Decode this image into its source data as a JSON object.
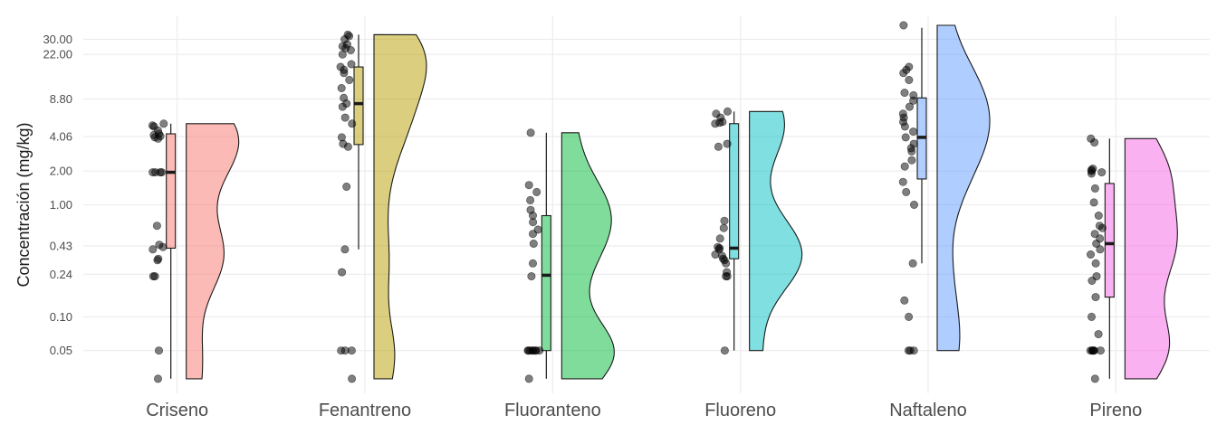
{
  "chart_data": {
    "type": "raincloud",
    "title": "",
    "xlabel": "",
    "ylabel": "Concentración (mg/kg)",
    "y_scale": "log",
    "ylim": [
      0.025,
      40
    ],
    "y_ticks": [
      0.05,
      0.1,
      0.24,
      0.43,
      1.0,
      2.0,
      4.06,
      8.8,
      22.0,
      30.0
    ],
    "y_tick_labels": [
      "0.05",
      "0.10",
      "0.24",
      "0.43",
      "1.00",
      "2.00",
      "4.06",
      "8.80",
      "22.00",
      "30.00"
    ],
    "grid": true,
    "legend": "none",
    "categories": [
      "Criseno",
      "Fenantreno",
      "Fluoranteno",
      "Fluoreno",
      "Naftaleno",
      "Pireno"
    ],
    "series": [
      {
        "category": "Criseno",
        "color": "#F8766D",
        "box": {
          "min": 0.028,
          "q1": 0.41,
          "median": 1.95,
          "q3": 4.3,
          "max": 5.3
        },
        "points": [
          0.028,
          0.05,
          0.23,
          0.23,
          0.32,
          0.33,
          0.4,
          0.42,
          0.44,
          0.65,
          1.95,
          1.95,
          1.95,
          1.95,
          3.9,
          4.0,
          4.1,
          4.2,
          4.3,
          4.6,
          5.0,
          5.1,
          5.3
        ]
      },
      {
        "category": "Fenantreno",
        "color": "#B79F00",
        "box": {
          "min": 0.4,
          "q1": 3.45,
          "median": 8.0,
          "q3": 17.0,
          "max": 33.0
        },
        "points": [
          0.028,
          0.05,
          0.05,
          0.05,
          0.25,
          0.4,
          1.45,
          3.3,
          3.5,
          4.0,
          5.3,
          6.0,
          7.5,
          8.0,
          9.0,
          11.0,
          13.0,
          15.0,
          16.0,
          17.0,
          18.0,
          22.0,
          24.0,
          25.0,
          26.0,
          27.0,
          30.0,
          32.0,
          33.0
        ]
      },
      {
        "category": "Fluoranteno",
        "color": "#00BA38",
        "box": {
          "min": 0.028,
          "q1": 0.05,
          "median": 0.235,
          "q3": 0.8,
          "max": 4.4
        },
        "points": [
          0.028,
          0.05,
          0.05,
          0.05,
          0.05,
          0.05,
          0.05,
          0.05,
          0.05,
          0.23,
          0.3,
          0.45,
          0.55,
          0.6,
          0.7,
          0.8,
          0.9,
          1.1,
          1.3,
          1.5,
          4.4
        ]
      },
      {
        "category": "Fluoreno",
        "color": "#00BFC4",
        "box": {
          "min": 0.05,
          "q1": 0.33,
          "median": 0.41,
          "q3": 5.3,
          "max": 6.8
        },
        "points": [
          0.05,
          0.23,
          0.23,
          0.25,
          0.3,
          0.32,
          0.33,
          0.35,
          0.36,
          0.4,
          0.41,
          0.42,
          0.5,
          0.62,
          0.72,
          3.3,
          3.5,
          5.3,
          5.4,
          5.5,
          6.0,
          6.5,
          6.8
        ]
      },
      {
        "category": "Naftaleno",
        "color": "#619CFF",
        "box": {
          "min": 0.3,
          "q1": 1.7,
          "median": 4.0,
          "q3": 9.0,
          "max": 38.0
        },
        "points": [
          0.05,
          0.05,
          0.05,
          0.1,
          0.14,
          0.3,
          1.0,
          1.3,
          1.6,
          2.2,
          2.5,
          3.0,
          3.2,
          3.5,
          4.0,
          4.5,
          5.0,
          5.5,
          6.0,
          6.5,
          7.5,
          8.5,
          9.5,
          10.0,
          13.0,
          15.0,
          16.0,
          17.0,
          40.0
        ]
      },
      {
        "category": "Pireno",
        "color": "#F564E3",
        "box": {
          "min": 0.028,
          "q1": 0.15,
          "median": 0.45,
          "q3": 1.55,
          "max": 3.9
        },
        "points": [
          0.028,
          0.05,
          0.05,
          0.05,
          0.05,
          0.05,
          0.05,
          0.07,
          0.1,
          0.15,
          0.21,
          0.23,
          0.3,
          0.36,
          0.4,
          0.45,
          0.5,
          0.55,
          0.62,
          0.65,
          0.8,
          1.05,
          1.4,
          1.9,
          1.95,
          2.0,
          2.05,
          2.1,
          3.6,
          3.9
        ]
      }
    ]
  }
}
